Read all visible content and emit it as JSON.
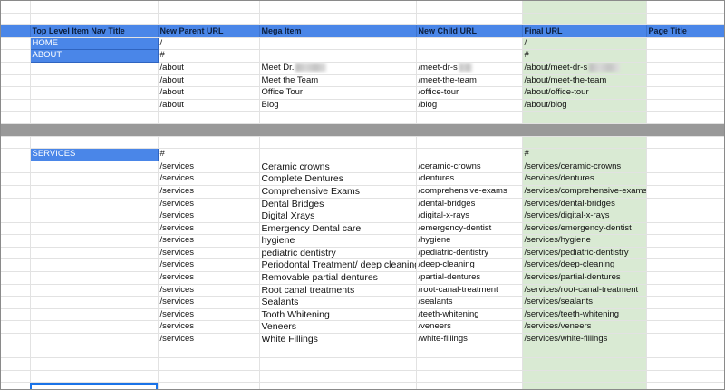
{
  "columns": [
    "Top Level Item Nav Title",
    "New Parent URL",
    "Mega Item",
    "New Child URL",
    "Final URL",
    "Page Title"
  ],
  "top_rows": [
    {
      "nav": "HOME",
      "parent": "/",
      "mega": "",
      "child": "",
      "final": "/"
    },
    {
      "nav": "ABOUT",
      "parent": "#",
      "mega": "",
      "child": "",
      "final": "#"
    }
  ],
  "about_items": [
    {
      "parent": "/about",
      "mega": "Meet Dr.",
      "child": "/meet-dr-s",
      "final": "/about/meet-dr-s"
    },
    {
      "parent": "/about",
      "mega": "Meet the Team",
      "child": "/meet-the-team",
      "final": "/about/meet-the-team"
    },
    {
      "parent": "/about",
      "mega": "Office Tour",
      "child": "/office-tour",
      "final": "/about/office-tour"
    },
    {
      "parent": "/about",
      "mega": "Blog",
      "child": "/blog",
      "final": "/about/blog"
    }
  ],
  "services_header": {
    "nav": "SERVICES",
    "parent": "#",
    "final": "#"
  },
  "services_items": [
    {
      "parent": "/services",
      "mega": "Ceramic crowns",
      "child": "/ceramic-crowns",
      "final": "/services/ceramic-crowns"
    },
    {
      "parent": "/services",
      "mega": "Complete Dentures",
      "child": "/dentures",
      "final": "/services/dentures"
    },
    {
      "parent": "/services",
      "mega": "Comprehensive Exams",
      "child": "/comprehensive-exams",
      "final": "/services/comprehensive-exams"
    },
    {
      "parent": "/services",
      "mega": "Dental Bridges",
      "child": "/dental-bridges",
      "final": "/services/dental-bridges"
    },
    {
      "parent": "/services",
      "mega": "Digital Xrays",
      "child": "/digital-x-rays",
      "final": "/services/digital-x-rays"
    },
    {
      "parent": "/services",
      "mega": "Emergency Dental care",
      "child": "/emergency-dentist",
      "final": "/services/emergency-dentist"
    },
    {
      "parent": "/services",
      "mega": "hygiene",
      "child": "/hygiene",
      "final": "/services/hygiene"
    },
    {
      "parent": "/services",
      "mega": "pediatric dentistry",
      "child": "/pediatric-dentistry",
      "final": "/services/pediatric-dentistry"
    },
    {
      "parent": "/services",
      "mega": "Periodontal Treatment/ deep cleaning",
      "child": "/deep-cleaning",
      "final": "/services/deep-cleaning"
    },
    {
      "parent": "/services",
      "mega": "Removable partial dentures",
      "child": "/partial-dentures",
      "final": "/services/partial-dentures"
    },
    {
      "parent": "/services",
      "mega": "Root canal treatments",
      "child": "/root-canal-treatment",
      "final": "/services/root-canal-treatment"
    },
    {
      "parent": "/services",
      "mega": "Sealants",
      "child": "/sealants",
      "final": "/services/sealants"
    },
    {
      "parent": "/services",
      "mega": "Tooth Whitening",
      "child": "/teeth-whitening",
      "final": "/services/teeth-whitening"
    },
    {
      "parent": "/services",
      "mega": "Veneers",
      "child": "/veneers",
      "final": "/services/veneers"
    },
    {
      "parent": "/services",
      "mega": "White Fillings",
      "child": "/white-fillings",
      "final": "/services/white-fillings"
    }
  ],
  "colors": {
    "header_blue": "#4a86e8",
    "final_url_green": "#d9ead3",
    "divider_gray": "#999999"
  }
}
